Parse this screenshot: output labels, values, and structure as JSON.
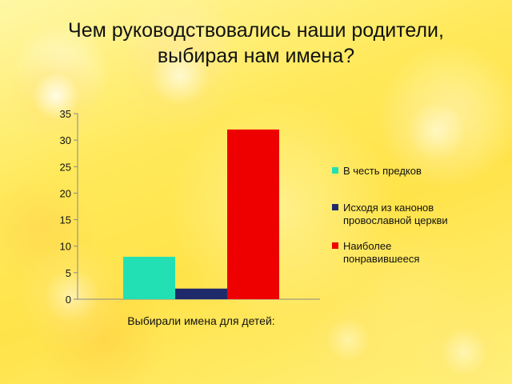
{
  "slide": {
    "title_line1": "Чем руководствовались наши родители,",
    "title_line2": "выбирая нам имена?"
  },
  "chart_data": {
    "type": "bar",
    "categories": [
      "Выбирали имена для детей:"
    ],
    "series": [
      {
        "name": "В честь предков",
        "values": [
          8
        ],
        "color": "#22e0b4"
      },
      {
        "name": "Исходя из канонов провославной церкви",
        "values": [
          2
        ],
        "color": "#1f2a6b"
      },
      {
        "name": "Наиболее понравившееся",
        "values": [
          32
        ],
        "color": "#ee0000"
      }
    ],
    "legend_lines": [
      [
        "В честь предков"
      ],
      [
        "Исходя из канонов",
        "провославной церкви"
      ],
      [
        "Наиболее",
        "понравившееся"
      ]
    ],
    "title": "",
    "xlabel": "",
    "ylabel": "",
    "ylim": [
      0,
      35
    ],
    "yticks": [
      "0",
      "5",
      "10",
      "15",
      "20",
      "25",
      "30",
      "35"
    ],
    "grid": false,
    "legend_position": "right"
  }
}
